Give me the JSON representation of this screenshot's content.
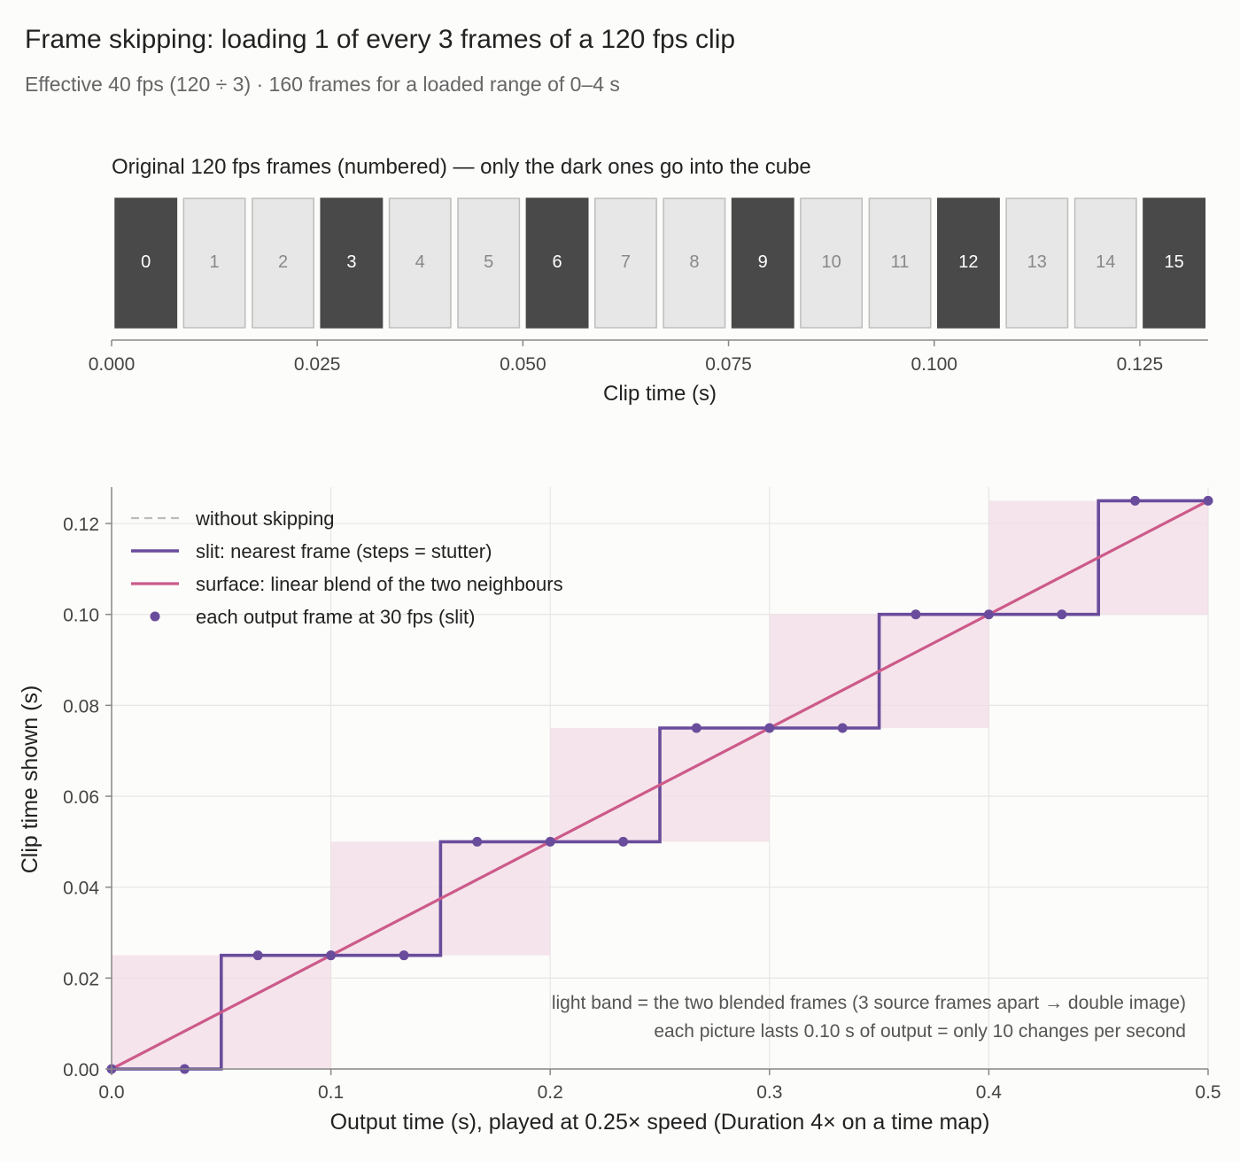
{
  "title": "Frame skipping: loading 1 of every 3 frames of a 120 fps clip",
  "subtitle": "Effective 40 fps (120 ÷ 3) · 160 frames for a loaded range of 0–4 s",
  "colors": {
    "kept_frame": "#494949",
    "skipped_frame": "#e7e7e7",
    "skipped_border": "#bdbdbd",
    "slit": "#6a4c9c",
    "surface": "#cc5a8a",
    "without": "#bbbbbb",
    "band": "#f3dce6",
    "grid": "#e6e6e6"
  },
  "chart_data": [
    {
      "type": "bar",
      "title": "Original 120 fps frames (numbered) — only the dark ones go into the cube",
      "xlabel": "Clip time (s)",
      "frame_rate": 120,
      "keep_every": 3,
      "frames": [
        {
          "n": "0",
          "t": 0.0,
          "kept": true
        },
        {
          "n": "1",
          "t": 0.00833,
          "kept": false
        },
        {
          "n": "2",
          "t": 0.01667,
          "kept": false
        },
        {
          "n": "3",
          "t": 0.025,
          "kept": true
        },
        {
          "n": "4",
          "t": 0.03333,
          "kept": false
        },
        {
          "n": "5",
          "t": 0.04167,
          "kept": false
        },
        {
          "n": "6",
          "t": 0.05,
          "kept": true
        },
        {
          "n": "7",
          "t": 0.05833,
          "kept": false
        },
        {
          "n": "8",
          "t": 0.06667,
          "kept": false
        },
        {
          "n": "9",
          "t": 0.075,
          "kept": true
        },
        {
          "n": "10",
          "t": 0.08333,
          "kept": false
        },
        {
          "n": "11",
          "t": 0.09167,
          "kept": false
        },
        {
          "n": "12",
          "t": 0.1,
          "kept": true
        },
        {
          "n": "13",
          "t": 0.10833,
          "kept": false
        },
        {
          "n": "14",
          "t": 0.11667,
          "kept": false
        },
        {
          "n": "15",
          "t": 0.125,
          "kept": true
        }
      ],
      "xlim": [
        0,
        0.1333
      ],
      "xticks": [
        0,
        0.025,
        0.05,
        0.075,
        0.1,
        0.125
      ],
      "xtick_labels": [
        "0.000",
        "0.025",
        "0.050",
        "0.075",
        "0.100",
        "0.125"
      ]
    },
    {
      "type": "line",
      "xlabel": "Output time (s), played at 0.25× speed (Duration 4× on a time map)",
      "ylabel": "Clip time shown (s)",
      "xlim": [
        0,
        0.5
      ],
      "ylim": [
        0,
        0.128
      ],
      "xticks": [
        0,
        0.1,
        0.2,
        0.3,
        0.4,
        0.5
      ],
      "xtick_labels": [
        "0.0",
        "0.1",
        "0.2",
        "0.3",
        "0.4",
        "0.5"
      ],
      "yticks": [
        0,
        0.02,
        0.04,
        0.06,
        0.08,
        0.1,
        0.12
      ],
      "ytick_labels": [
        "0.00",
        "0.02",
        "0.04",
        "0.06",
        "0.08",
        "0.10",
        "0.12"
      ],
      "grid": true,
      "legend_position": "top-left",
      "series": [
        {
          "name": "without skipping",
          "style": "dashed",
          "x": [
            0,
            0.5
          ],
          "y": [
            0,
            0.125
          ]
        },
        {
          "name": "slit: nearest frame (steps = stutter)",
          "style": "step",
          "x": [
            0,
            0.05,
            0.05,
            0.15,
            0.15,
            0.25,
            0.25,
            0.35,
            0.35,
            0.45,
            0.45,
            0.5
          ],
          "y": [
            0,
            0,
            0.025,
            0.025,
            0.05,
            0.05,
            0.075,
            0.075,
            0.1,
            0.1,
            0.125,
            0.125
          ]
        },
        {
          "name": "surface: linear blend of the two neighbours",
          "style": "solid",
          "x": [
            0,
            0.5
          ],
          "y": [
            0,
            0.125
          ]
        },
        {
          "name": "each output frame at 30 fps (slit)",
          "style": "markers",
          "x": [
            0,
            0.0333,
            0.0667,
            0.1,
            0.1333,
            0.1667,
            0.2,
            0.2333,
            0.2667,
            0.3,
            0.3333,
            0.3667,
            0.4,
            0.4333,
            0.4667,
            0.5
          ],
          "y": [
            0,
            0,
            0.025,
            0.025,
            0.025,
            0.05,
            0.05,
            0.05,
            0.075,
            0.075,
            0.075,
            0.1,
            0.1,
            0.1,
            0.125,
            0.125
          ]
        }
      ],
      "bands": [
        {
          "x0": 0.0,
          "x1": 0.1,
          "y0": 0.0,
          "y1": 0.025
        },
        {
          "x0": 0.1,
          "x1": 0.2,
          "y0": 0.025,
          "y1": 0.05
        },
        {
          "x0": 0.2,
          "x1": 0.3,
          "y0": 0.05,
          "y1": 0.075
        },
        {
          "x0": 0.3,
          "x1": 0.4,
          "y0": 0.075,
          "y1": 0.1
        },
        {
          "x0": 0.4,
          "x1": 0.5,
          "y0": 0.1,
          "y1": 0.125
        }
      ],
      "annotations": [
        "light band = the two blended frames (3 source frames apart → double image)",
        "each picture lasts 0.10 s of output = only 10 changes per second"
      ]
    }
  ]
}
